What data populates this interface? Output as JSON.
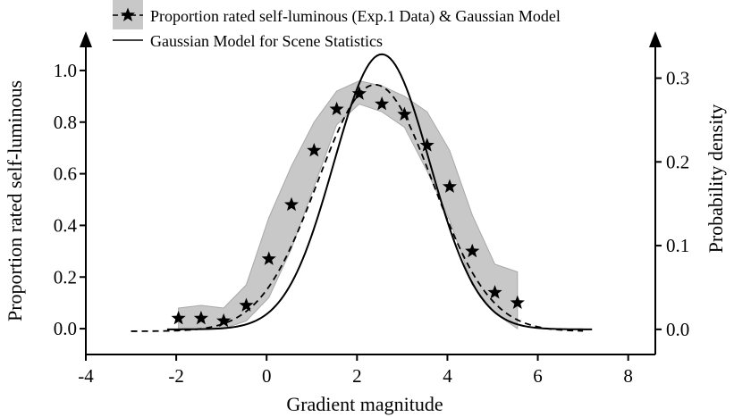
{
  "chart_data": {
    "type": "line",
    "xlabel": "Gradient magnitude",
    "ylabel_left": "Proportion rated self-luminous",
    "ylabel_right": "Probability density",
    "xlim": [
      -4,
      8.6
    ],
    "ylim_left": [
      -0.1,
      1.1
    ],
    "ylim_right": [
      -0.03,
      0.34
    ],
    "x_ticks": [
      "-4",
      "-2",
      "0",
      "2",
      "4",
      "6",
      "8"
    ],
    "y_left_ticks": [
      "0.0",
      "0.2",
      "0.4",
      "0.6",
      "0.8",
      "1.0"
    ],
    "y_right_ticks": [
      "0.0",
      "0.1",
      "0.2",
      "0.3"
    ],
    "grid": false,
    "legend_position": "top-left",
    "legend": [
      "Proportion rated self-luminous (Exp.1 Data) & Gaussian Model",
      "Gaussian Model for Scene Statistics"
    ],
    "series": [
      {
        "name": "Proportion rated self-luminous (Exp.1 Data) & Gaussian Model",
        "kind": "points",
        "axis": "left",
        "x": [
          -1.95,
          -1.45,
          -0.95,
          -0.45,
          0.05,
          0.55,
          1.05,
          1.55,
          2.05,
          2.55,
          3.05,
          3.55,
          4.05,
          4.55,
          5.05,
          5.55
        ],
        "y": [
          0.04,
          0.04,
          0.03,
          0.09,
          0.27,
          0.48,
          0.69,
          0.85,
          0.91,
          0.87,
          0.83,
          0.71,
          0.55,
          0.3,
          0.14,
          0.1
        ],
        "band_low": [
          0.0,
          0.0,
          0.0,
          0.03,
          0.12,
          0.31,
          0.55,
          0.79,
          0.87,
          0.84,
          0.78,
          0.61,
          0.42,
          0.17,
          0.06,
          0.0
        ],
        "band_high": [
          0.08,
          0.09,
          0.08,
          0.17,
          0.43,
          0.63,
          0.8,
          0.92,
          0.96,
          0.94,
          0.9,
          0.84,
          0.69,
          0.44,
          0.25,
          0.22
        ],
        "color": "#000000",
        "band_color": "#c8c8c8"
      },
      {
        "name": "Gaussian Model",
        "kind": "dashed-curve",
        "axis": "left",
        "gaussian": {
          "baseline": -0.01,
          "amplitude": 0.955,
          "mean": 2.4,
          "sd": 1.27
        },
        "x_range": [
          -3.0,
          7.0
        ],
        "color": "#000000"
      },
      {
        "name": "Gaussian Model for Scene Statistics",
        "kind": "solid-curve",
        "axis": "right",
        "gaussian": {
          "baseline": 0.0,
          "amplitude": 0.3285,
          "mean": 2.55,
          "sd": 1.06
        },
        "x_range": [
          -2.2,
          7.2
        ],
        "color": "#000000"
      }
    ]
  }
}
